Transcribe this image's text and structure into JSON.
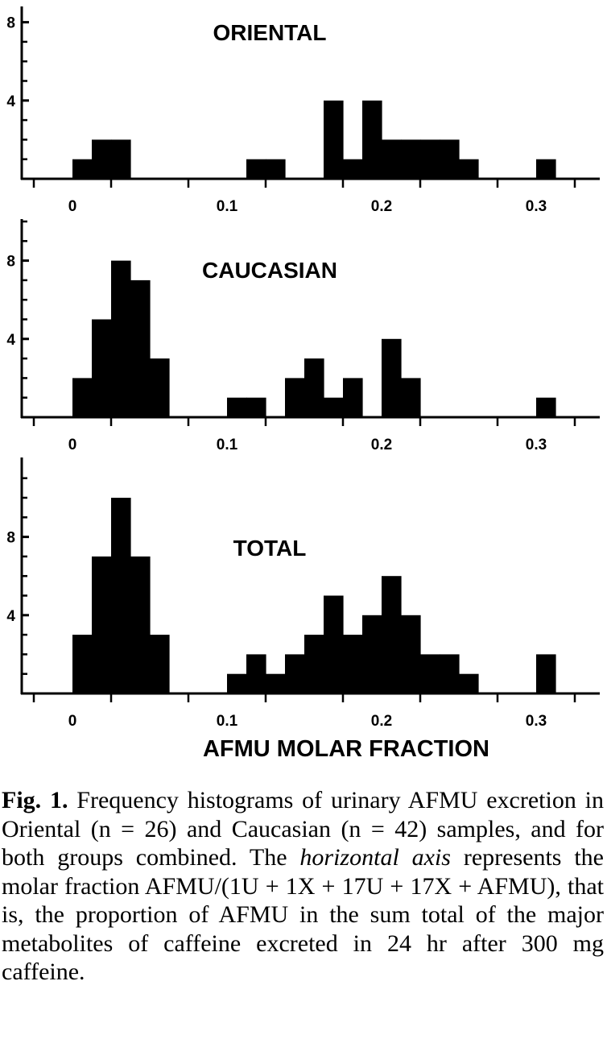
{
  "chart_data": [
    {
      "type": "bar",
      "title": "ORIENTAL",
      "bin_width": 0.0125,
      "bin_starts": [
        0,
        0.0125,
        0.025,
        0.1125,
        0.125,
        0.1625,
        0.175,
        0.1875,
        0.2,
        0.2125,
        0.225,
        0.2375,
        0.25,
        0.3
      ],
      "values": [
        1,
        2,
        2,
        1,
        1,
        4,
        1,
        4,
        2,
        2,
        2,
        2,
        1,
        1
      ],
      "xticks": [
        "0",
        "0.1",
        "0.2",
        "0.3"
      ],
      "xtick_values": [
        0,
        0.1,
        0.2,
        0.3
      ],
      "yticks": [
        "8",
        "4"
      ],
      "ytick_values": [
        8,
        4
      ],
      "xlim": [
        -0.025,
        0.34
      ],
      "ylim": [
        0,
        8
      ]
    },
    {
      "type": "bar",
      "title": "CAUCASIAN",
      "bin_width": 0.0125,
      "bin_starts": [
        0,
        0.0125,
        0.025,
        0.0375,
        0.05,
        0.1,
        0.1125,
        0.1375,
        0.15,
        0.1625,
        0.175,
        0.2,
        0.2125,
        0.3
      ],
      "values": [
        2,
        5,
        8,
        7,
        3,
        1,
        1,
        2,
        3,
        1,
        2,
        4,
        2,
        1
      ],
      "xticks": [
        "0",
        "0.1",
        "0.2",
        "0.3"
      ],
      "xtick_values": [
        0,
        0.1,
        0.2,
        0.3
      ],
      "yticks": [
        "8",
        "4"
      ],
      "ytick_values": [
        8,
        4
      ],
      "xlim": [
        -0.025,
        0.34
      ],
      "ylim": [
        0,
        8
      ]
    },
    {
      "type": "bar",
      "title": "TOTAL",
      "bin_width": 0.0125,
      "bin_starts": [
        0,
        0.0125,
        0.025,
        0.0375,
        0.05,
        0.1,
        0.1125,
        0.125,
        0.1375,
        0.15,
        0.1625,
        0.175,
        0.1875,
        0.2,
        0.2125,
        0.225,
        0.2375,
        0.25,
        0.3
      ],
      "values": [
        3,
        7,
        10,
        7,
        3,
        1,
        2,
        1,
        2,
        3,
        5,
        3,
        4,
        6,
        4,
        2,
        2,
        1,
        2
      ],
      "xticks": [
        "0",
        "0.1",
        "0.2",
        "0.3"
      ],
      "xtick_values": [
        0,
        0.1,
        0.2,
        0.3
      ],
      "yticks": [
        "8",
        "4"
      ],
      "ytick_values": [
        8,
        4
      ],
      "xlim": [
        -0.025,
        0.34
      ],
      "ylim": [
        0,
        11
      ],
      "xlabel": "AFMU MOLAR FRACTION"
    }
  ],
  "caption": {
    "fig_label": "Fig. 1.",
    "text_1": " Frequency histograms of urinary AFMU excretion in Oriental (n = 26) and Caucasian (n = 42) samples, and for both groups combined. The ",
    "italic": "horizontal axis",
    "text_2": " represents the molar fraction AFMU/(1U + 1X + 17U + 17X + AFMU), that is, the proportion of AFMU in the sum total of the major metabolites of caffeine excreted in 24 hr after 300 mg caffeine."
  }
}
